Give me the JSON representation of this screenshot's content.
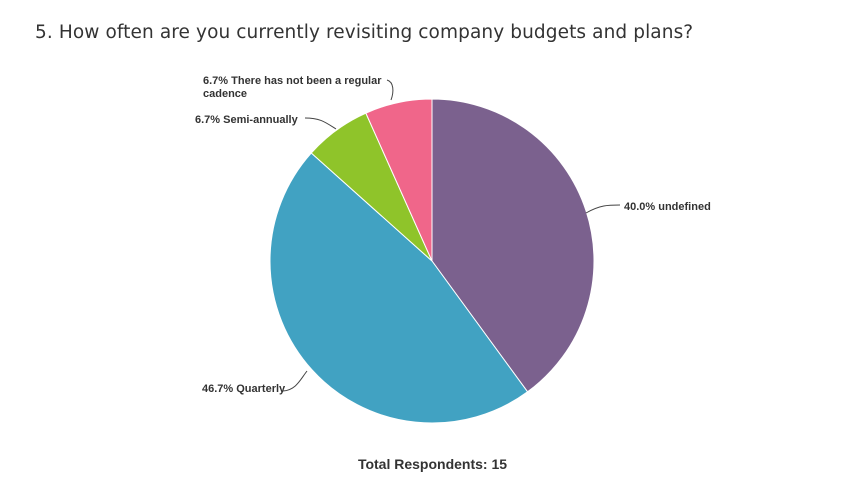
{
  "question": {
    "title": "5. How often are you currently revisiting company budgets and plans?"
  },
  "footer": {
    "total_label": "Total Respondents: 15"
  },
  "chart_data": {
    "type": "pie",
    "title": "5. How often are you currently revisiting company budgets and plans?",
    "slices": [
      {
        "label": "undefined",
        "percent": 40.0,
        "display": "40.0% undefined",
        "color": "#7b618e"
      },
      {
        "label": "Quarterly",
        "percent": 46.7,
        "display": "46.7% Quarterly",
        "color": "#41a2c2"
      },
      {
        "label": "Semi-annually",
        "percent": 6.7,
        "display": "6.7% Semi-annually",
        "color": "#8fc42a"
      },
      {
        "label": "There has not been a regular cadence",
        "percent": 6.7,
        "display_lines": [
          "6.7% There has not been a regular",
          "cadence"
        ],
        "color": "#f0668a"
      }
    ],
    "total_respondents": 15
  }
}
